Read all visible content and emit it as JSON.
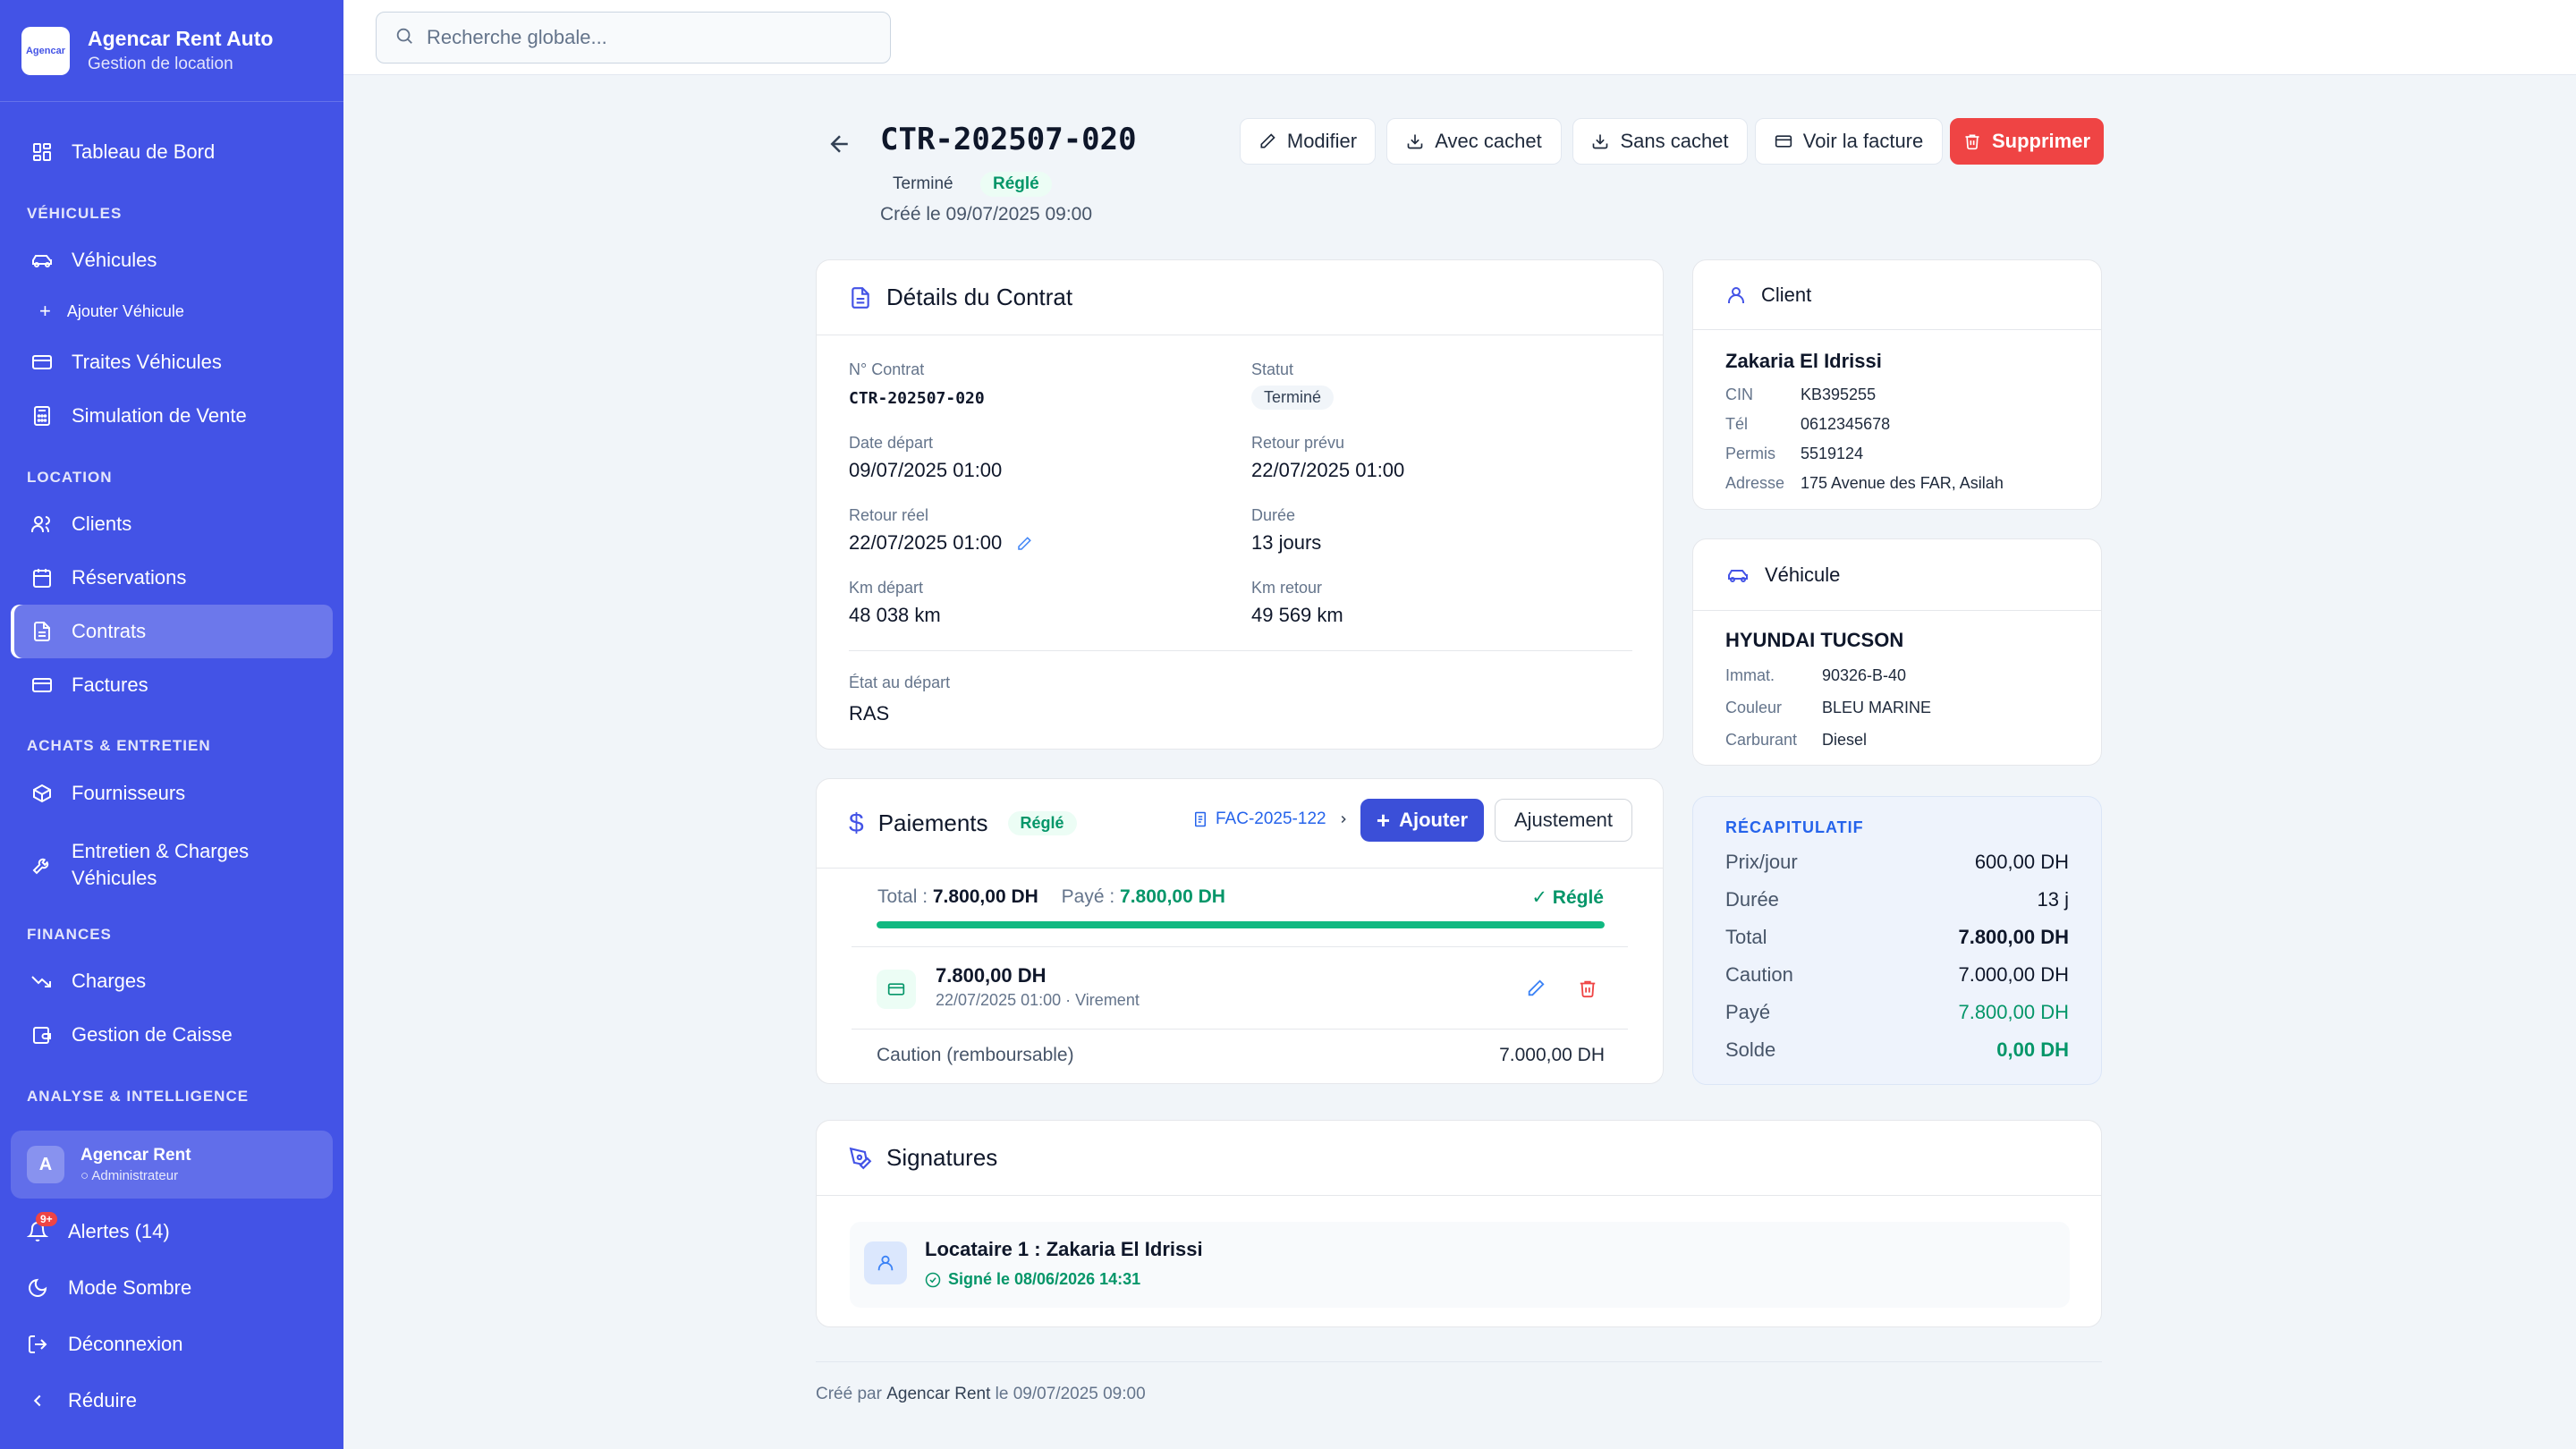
{
  "brand": {
    "logo_text": "Agencar",
    "title": "Agencar Rent Auto",
    "subtitle": "Gestion de location"
  },
  "sidebar": {
    "dashboard": "Tableau de Bord",
    "sec_vehicles": "VÉHICULES",
    "vehicles": "Véhicules",
    "add_vehicle": "Ajouter Véhicule",
    "vehicle_drafts": "Traites Véhicules",
    "sale_sim": "Simulation de Vente",
    "sec_rental": "LOCATION",
    "clients": "Clients",
    "reservations": "Réservations",
    "contracts": "Contrats",
    "invoices": "Factures",
    "sec_purchases": "ACHATS & ENTRETIEN",
    "suppliers": "Fournisseurs",
    "maintenance_1": "Entretien & Charges",
    "maintenance_2": "Véhicules",
    "sec_finances": "FINANCES",
    "charges": "Charges",
    "cash": "Gestion de Caisse",
    "sec_analysis": "ANALYSE & INTELLIGENCE"
  },
  "user": {
    "initial": "A",
    "name": "Agencar Rent",
    "role": "Administrateur"
  },
  "footer_nav": {
    "alerts_badge": "9+",
    "alerts": "Alertes (14)",
    "dark_mode": "Mode Sombre",
    "logout": "Déconnexion",
    "collapse": "Réduire"
  },
  "search": {
    "placeholder": "Recherche globale..."
  },
  "header": {
    "contract_id": "CTR-202507-020",
    "status": "Terminé",
    "payment_status": "Réglé",
    "created": "Créé le 09/07/2025 09:00",
    "btn_edit": "Modifier",
    "btn_stamp": "Avec cachet",
    "btn_nostamp": "Sans cachet",
    "btn_invoice": "Voir la facture",
    "btn_delete": "Supprimer"
  },
  "details": {
    "title": "Détails du Contrat",
    "no_label": "N° Contrat",
    "no_value": "CTR-202507-020",
    "status_label": "Statut",
    "status_value": "Terminé",
    "start_label": "Date départ",
    "start_value": "09/07/2025 01:00",
    "planned_label": "Retour prévu",
    "planned_value": "22/07/2025 01:00",
    "actual_label": "Retour réel",
    "actual_value": "22/07/2025 01:00",
    "duration_label": "Durée",
    "duration_value": "13 jours",
    "km_start_label": "Km départ",
    "km_start_value": "48 038 km",
    "km_end_label": "Km retour",
    "km_end_value": "49 569 km",
    "state_label": "État au départ",
    "state_value": "RAS"
  },
  "client": {
    "title": "Client",
    "name": "Zakaria El Idrissi",
    "cin_label": "CIN",
    "cin": "KB395255",
    "tel_label": "Tél",
    "tel": "0612345678",
    "permit_label": "Permis",
    "permit": "5519124",
    "address_label": "Adresse",
    "address": "175 Avenue des FAR, Asilah"
  },
  "vehicle": {
    "title": "Véhicule",
    "name": "HYUNDAI TUCSON",
    "plate_label": "Immat.",
    "plate": "90326-B-40",
    "color_label": "Couleur",
    "color": "BLEU MARINE",
    "fuel_label": "Carburant",
    "fuel": "Diesel"
  },
  "recap": {
    "title": "RÉCAPITULATIF",
    "price_label": "Prix/jour",
    "price": "600,00 DH",
    "duration_label": "Durée",
    "duration": "13 j",
    "total_label": "Total",
    "total": "7.800,00 DH",
    "deposit_label": "Caution",
    "deposit": "7.000,00 DH",
    "paid_label": "Payé",
    "paid": "7.800,00 DH",
    "balance_label": "Solde",
    "balance": "0,00 DH"
  },
  "payments": {
    "title": "Paiements",
    "status": "Réglé",
    "invoice_link": "FAC-2025-122",
    "btn_add": "Ajouter",
    "btn_adjust": "Ajustement",
    "total_label": "Total :",
    "total": "7.800,00 DH",
    "paid_label": "Payé :",
    "paid": "7.800,00 DH",
    "settled": "✓ Réglé",
    "progress_pct": 100,
    "item_amount": "7.800,00 DH",
    "item_meta": "22/07/2025 01:00 · Virement",
    "deposit_label": "Caution (remboursable)",
    "deposit": "7.000,00 DH"
  },
  "signatures": {
    "title": "Signatures",
    "tenant": "Locataire 1 : Zakaria El Idrissi",
    "signed": "Signé le 08/06/2026 14:31"
  },
  "footer": {
    "prefix": "Créé par",
    "author": "Agencar Rent",
    "suffix": "le 09/07/2025 09:00"
  },
  "colors": {
    "sidebar": "#4353e6",
    "primary": "#3b4fd8",
    "danger": "#ef4444",
    "success": "#059669"
  }
}
